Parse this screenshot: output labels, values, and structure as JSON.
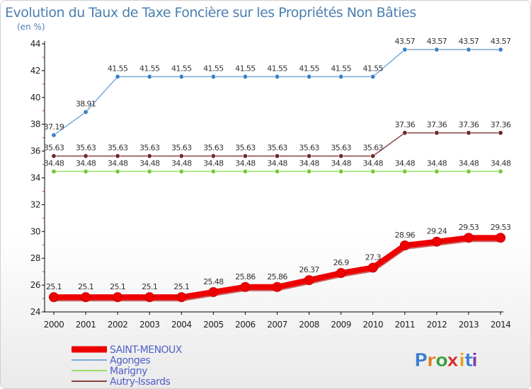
{
  "chart_data": {
    "type": "line",
    "title": "Evolution du Taux de Taxe Foncière sur les Propriétés Non Bâties",
    "subtitle": "(en %)",
    "xlabel": "",
    "ylabel": "",
    "ylim": [
      24,
      44
    ],
    "yticks": [
      24,
      26,
      28,
      30,
      32,
      34,
      36,
      38,
      40,
      42,
      44
    ],
    "x": [
      2000,
      2001,
      2002,
      2003,
      2004,
      2005,
      2006,
      2007,
      2008,
      2009,
      2010,
      2011,
      2012,
      2013,
      2014
    ],
    "grid": false,
    "legend_position": "bottom-left",
    "series": [
      {
        "name": "SAINT-MENOUX",
        "color": "#ee0000",
        "style": "thick",
        "values": [
          25.1,
          25.1,
          25.1,
          25.1,
          25.1,
          25.48,
          25.86,
          25.86,
          26.37,
          26.9,
          27.3,
          28.96,
          29.24,
          29.53,
          29.53
        ],
        "labels": [
          "25.1",
          "25.1",
          "25.1",
          "25.1",
          "25.1",
          "25.48",
          "25.86",
          "25.86",
          "26.37",
          "26.9",
          "27.3",
          "28.96",
          "29.24",
          "29.53",
          "29.53"
        ]
      },
      {
        "name": "Agonges",
        "color": "#7aa8d8",
        "marker_color": "#3a82c8",
        "style": "thin",
        "values": [
          37.19,
          38.91,
          41.55,
          41.55,
          41.55,
          41.55,
          41.55,
          41.55,
          41.55,
          41.55,
          41.55,
          43.57,
          43.57,
          43.57,
          43.57
        ],
        "labels": [
          "37.19",
          "38.91",
          "41.55",
          "41.55",
          "41.55",
          "41.55",
          "41.55",
          "41.55",
          "41.55",
          "41.55",
          "41.55",
          "43.57",
          "43.57",
          "43.57",
          "43.57"
        ]
      },
      {
        "name": "Marigny",
        "color": "#99dd66",
        "marker_color": "#77c83a",
        "style": "thin",
        "values": [
          34.48,
          34.48,
          34.48,
          34.48,
          34.48,
          34.48,
          34.48,
          34.48,
          34.48,
          34.48,
          34.48,
          34.48,
          34.48,
          34.48,
          34.48
        ],
        "labels": [
          "34.48",
          "34.48",
          "34.48",
          "34.48",
          "34.48",
          "34.48",
          "34.48",
          "34.48",
          "34.48",
          "34.48",
          "34.48",
          "34.48",
          "34.48",
          "34.48",
          "34.48"
        ]
      },
      {
        "name": "Autry-Issards",
        "color": "#884444",
        "marker_color": "#6e2a2a",
        "style": "thin",
        "values": [
          35.63,
          35.63,
          35.63,
          35.63,
          35.63,
          35.63,
          35.63,
          35.63,
          35.63,
          35.63,
          35.63,
          37.36,
          37.36,
          37.36,
          37.36
        ],
        "labels": [
          "35.63",
          "35.63",
          "35.63",
          "35.63",
          "35.63",
          "35.63",
          "35.63",
          "35.63",
          "35.63",
          "35.63",
          "35.63",
          "37.36",
          "37.36",
          "37.36",
          "37.36"
        ]
      }
    ]
  },
  "brand": {
    "letters": [
      "P",
      "r",
      "o",
      "x",
      "i",
      "t",
      "i"
    ],
    "colors": [
      "#3a7fd0",
      "#e07a1a",
      "#3aa040",
      "#d03030",
      "#e0a020",
      "#3a7fd0",
      "#7a3ab0"
    ]
  }
}
